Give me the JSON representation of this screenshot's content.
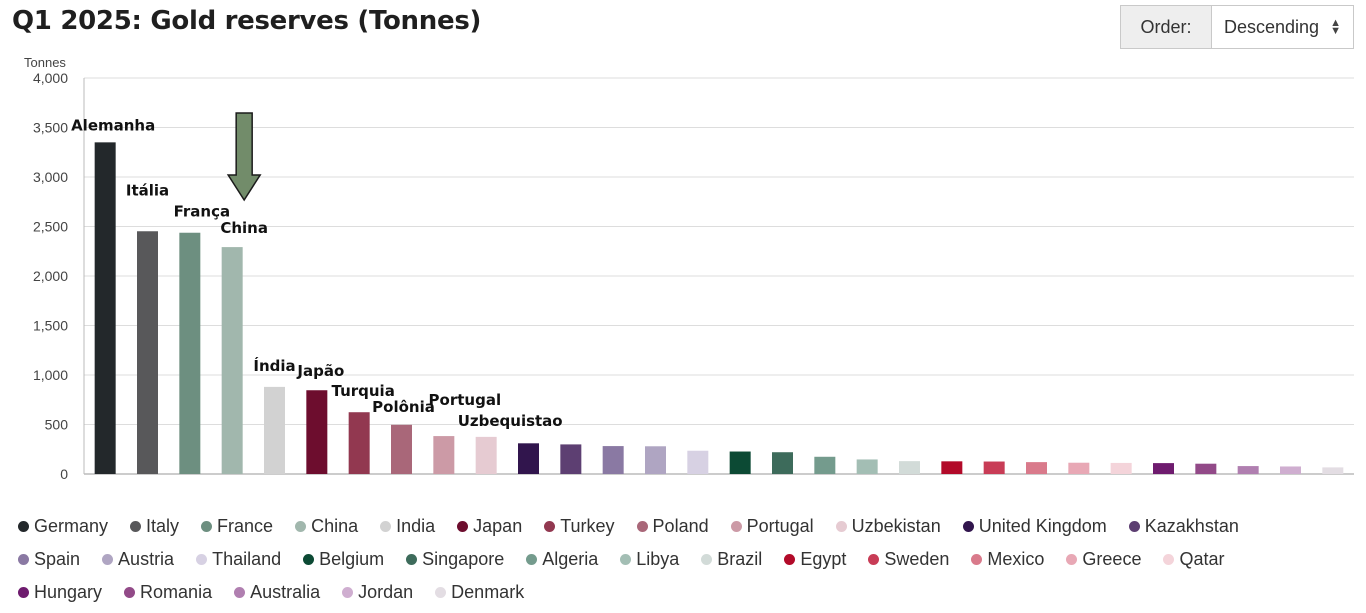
{
  "chart_data": {
    "type": "bar",
    "title": "Q1 2025: Gold reserves (Tonnes)",
    "ylabel": "Tonnes",
    "ylim": [
      0,
      4000
    ],
    "yticks": [
      0,
      500,
      1000,
      1500,
      2000,
      2500,
      3000,
      3500,
      4000
    ],
    "ytick_labels": [
      "0",
      "500",
      "1,000",
      "1,500",
      "2,000",
      "2,500",
      "3,000",
      "3,500",
      "4,000"
    ],
    "grid": true,
    "legend_position": "bottom",
    "categories": [
      "Germany",
      "Italy",
      "France",
      "China",
      "India",
      "Japan",
      "Turkey",
      "Poland",
      "Portugal",
      "Uzbekistan",
      "United Kingdom",
      "Kazakhstan",
      "Spain",
      "Austria",
      "Thailand",
      "Belgium",
      "Singapore",
      "Algeria",
      "Libya",
      "Brazil",
      "Egypt",
      "Sweden",
      "Mexico",
      "Greece",
      "Qatar",
      "Hungary",
      "Romania",
      "Australia",
      "Jordan",
      "Denmark"
    ],
    "values": [
      3350,
      2452,
      2437,
      2292,
      880,
      846,
      624,
      497,
      383,
      375,
      310,
      299,
      282,
      280,
      235,
      227,
      220,
      174,
      147,
      130,
      128,
      126,
      120,
      114,
      112,
      110,
      104,
      80,
      76,
      67
    ],
    "colors": [
      "#23282b",
      "#58585a",
      "#6d8f80",
      "#a1b7ad",
      "#d2d2d2",
      "#6d0d2e",
      "#923850",
      "#a96779",
      "#cc9aa6",
      "#e6cbd2",
      "#31154d",
      "#5d3f72",
      "#8a79a3",
      "#afa5c2",
      "#d7d1e3",
      "#0c4a34",
      "#3d6b5b",
      "#749b8d",
      "#a3beb4",
      "#d2dbd8",
      "#b20a29",
      "#c83c56",
      "#d97a8b",
      "#e8a8b5",
      "#f4d4da",
      "#6e1b6e",
      "#924a88",
      "#b07fb0",
      "#cfaed0",
      "#e3dde3"
    ],
    "annotations": [
      {
        "index": 0,
        "text": "Alemanha"
      },
      {
        "index": 1,
        "text": "Itália"
      },
      {
        "index": 2,
        "text": "França"
      },
      {
        "index": 3,
        "text": "China"
      },
      {
        "index": 4,
        "text": "Índia"
      },
      {
        "index": 5,
        "text": "Japão"
      },
      {
        "index": 6,
        "text": "Turquia"
      },
      {
        "index": 7,
        "text": "Polônia"
      },
      {
        "index": 8,
        "text": "Portugal"
      },
      {
        "index": 9,
        "text": "Uzbequistao"
      }
    ],
    "arrow_annotation": {
      "points_to": "China",
      "color": "#728c6a"
    }
  },
  "order_control": {
    "label": "Order:",
    "selected": "Descending"
  }
}
